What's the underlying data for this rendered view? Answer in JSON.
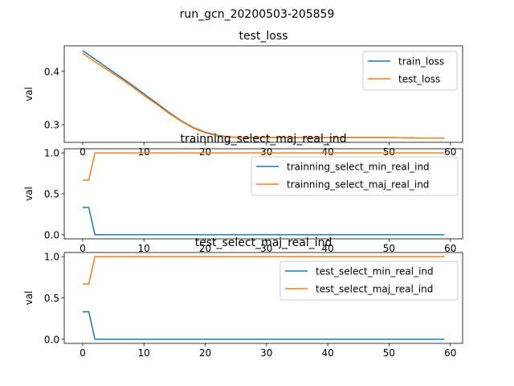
{
  "figure": {
    "suptitle": "run_gcn_20200503-205859"
  },
  "colors": {
    "blue": "#1f77b4",
    "orange": "#ff7f0e"
  },
  "chart_data": [
    {
      "type": "line",
      "title": "test_loss",
      "ylabel": "val",
      "xlim": [
        -3,
        62
      ],
      "ylim": [
        0.267,
        0.448
      ],
      "xticks": [
        0,
        10,
        20,
        30,
        40,
        50,
        60
      ],
      "yticks": [
        0.3,
        0.4
      ],
      "ytick_labels": [
        "0.3",
        "0.4"
      ],
      "legend": "upper-right",
      "series": [
        {
          "name": "train_loss",
          "color": "#1f77b4",
          "x": [
            0,
            2,
            4,
            6,
            8,
            10,
            12,
            14,
            16,
            18,
            20,
            22,
            24,
            26,
            28,
            30,
            35,
            40,
            45,
            50,
            55,
            59
          ],
          "y": [
            0.439,
            0.423,
            0.407,
            0.391,
            0.375,
            0.358,
            0.341,
            0.324,
            0.308,
            0.295,
            0.286,
            0.28,
            0.277,
            0.276,
            0.276,
            0.276,
            0.276,
            0.276,
            0.276,
            0.276,
            0.275,
            0.275
          ]
        },
        {
          "name": "test_loss",
          "color": "#ff7f0e",
          "x": [
            0,
            2,
            4,
            6,
            8,
            10,
            12,
            14,
            16,
            18,
            20,
            22,
            24,
            26,
            28,
            30,
            35,
            40,
            45,
            50,
            55,
            59
          ],
          "y": [
            0.434,
            0.418,
            0.403,
            0.388,
            0.372,
            0.355,
            0.339,
            0.322,
            0.307,
            0.294,
            0.285,
            0.279,
            0.277,
            0.276,
            0.276,
            0.276,
            0.276,
            0.276,
            0.276,
            0.276,
            0.275,
            0.275
          ]
        }
      ]
    },
    {
      "type": "line",
      "title": "trainning_select_maj_real_ind",
      "ylabel": "val",
      "xlim": [
        -3,
        62
      ],
      "ylim": [
        -0.05,
        1.05
      ],
      "xticks": [
        0,
        10,
        20,
        30,
        40,
        50,
        60
      ],
      "yticks": [
        0.0,
        0.5,
        1.0
      ],
      "ytick_labels": [
        "0.0",
        "0.5",
        "1.0"
      ],
      "legend": "upper-right",
      "series": [
        {
          "name": "trainning_select_min_real_ind",
          "color": "#1f77b4",
          "x": [
            0,
            1,
            2,
            59
          ],
          "y": [
            0.333,
            0.333,
            0.0,
            0.0
          ]
        },
        {
          "name": "trainning_select_maj_real_ind",
          "color": "#ff7f0e",
          "x": [
            0,
            1,
            2,
            59
          ],
          "y": [
            0.667,
            0.667,
            1.0,
            1.0
          ]
        }
      ]
    },
    {
      "type": "line",
      "title": "test_select_maj_real_ind",
      "ylabel": "val",
      "xlim": [
        -3,
        62
      ],
      "ylim": [
        -0.05,
        1.05
      ],
      "xticks": [
        0,
        10,
        20,
        30,
        40,
        50,
        60
      ],
      "yticks": [
        0.0,
        0.5,
        1.0
      ],
      "ytick_labels": [
        "0.0",
        "0.5",
        "1.0"
      ],
      "legend": "upper-right",
      "series": [
        {
          "name": "test_select_min_real_ind",
          "color": "#1f77b4",
          "x": [
            0,
            1,
            2,
            59
          ],
          "y": [
            0.333,
            0.333,
            0.0,
            0.0
          ]
        },
        {
          "name": "test_select_maj_real_ind",
          "color": "#ff7f0e",
          "x": [
            0,
            1,
            2,
            59
          ],
          "y": [
            0.667,
            0.667,
            1.0,
            1.0
          ]
        }
      ]
    }
  ]
}
